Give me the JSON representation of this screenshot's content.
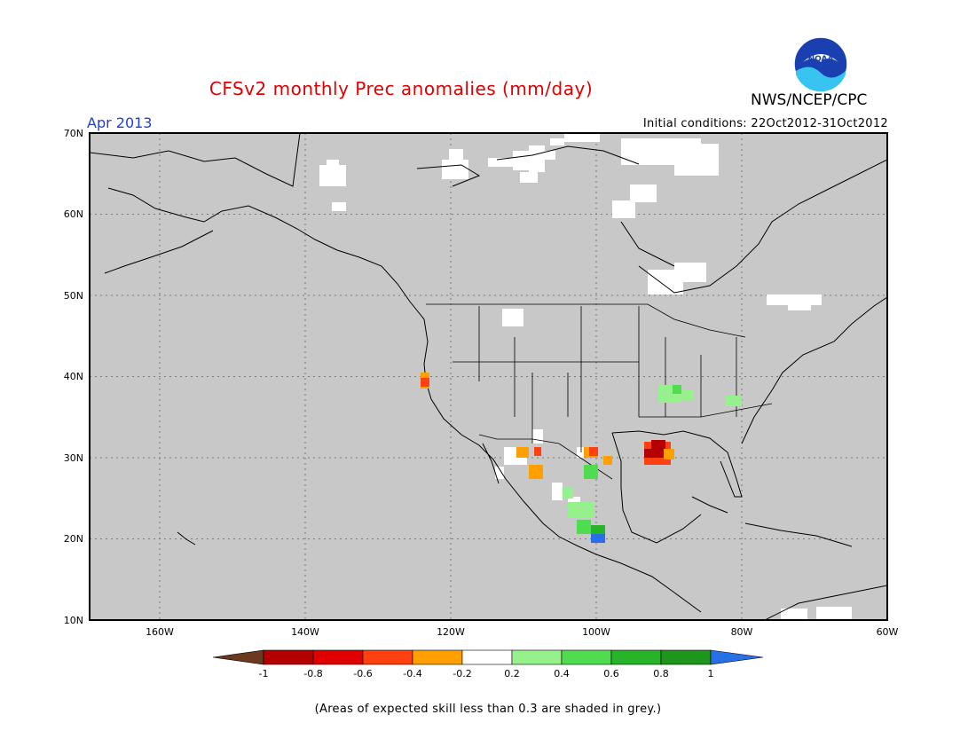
{
  "header": {
    "title": "CFSv2 monthly Prec anomalies (mm/day)",
    "agency": "NWS/NCEP/CPC",
    "logo_text": "NOAA",
    "valid_month": "Apr 2013",
    "initial_conditions": "Initial conditions: 22Oct2012-31Oct2012"
  },
  "map": {
    "lat_labels": [
      "70N",
      "60N",
      "50N",
      "40N",
      "30N",
      "20N",
      "10N"
    ],
    "lon_labels": [
      "160W",
      "140W",
      "120W",
      "100W",
      "80W",
      "60W"
    ],
    "extent": {
      "lon": [
        -172,
        -60
      ],
      "lat": [
        10,
        70
      ]
    },
    "background": "#c8c8c8",
    "grid": "dotted"
  },
  "legend": {
    "tick_labels": [
      "-1",
      "-0.8",
      "-0.6",
      "-0.4",
      "-0.2",
      "0.2",
      "0.4",
      "0.6",
      "0.8",
      "1"
    ],
    "colors": [
      "#6b3a1e",
      "#b40000",
      "#e00000",
      "#ff4010",
      "#ffa000",
      "#ffffff",
      "#96f08c",
      "#50dc50",
      "#28b428",
      "#1e961e",
      "#2870e6"
    ]
  },
  "footnote": "(Areas of expected skill less than 0.3 are shaded in grey.)"
}
